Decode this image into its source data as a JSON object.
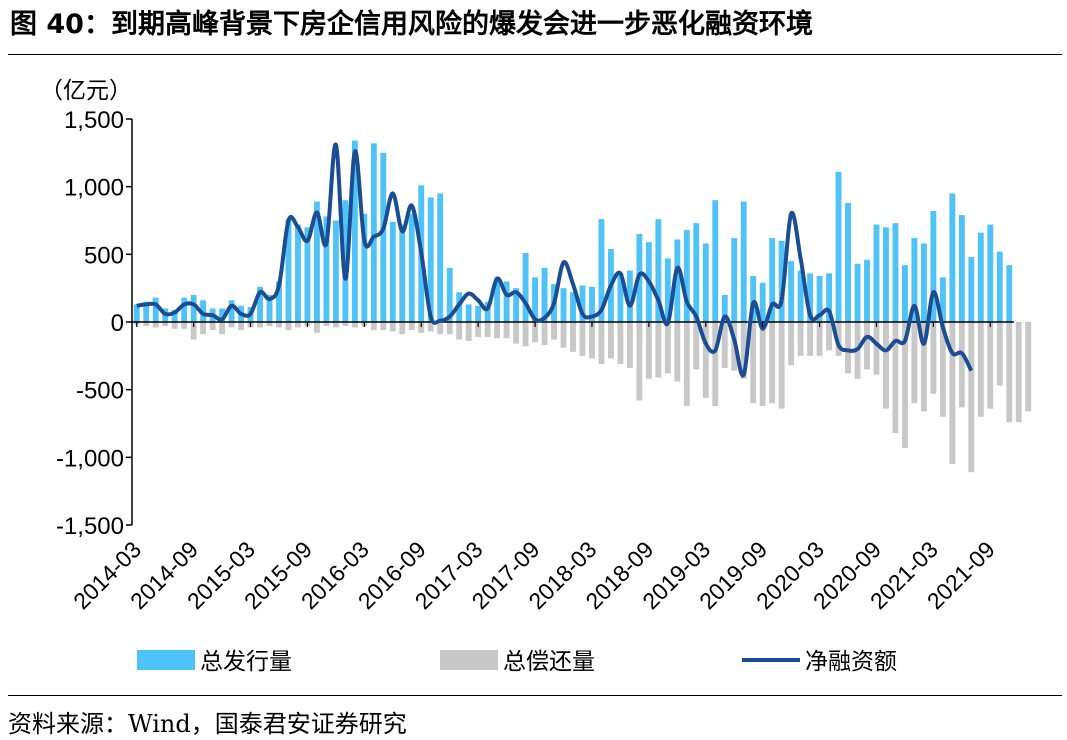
{
  "figure": {
    "title": "图 40：到期高峰背景下房企信用风险的爆发会进一步恶化融资环境",
    "source": "资料来源：Wind，国泰君安证券研究"
  },
  "chart_data": {
    "type": "bar+line",
    "unit_label": "（亿元）",
    "ylim": [
      -1500,
      1500
    ],
    "yticks": [
      1500,
      1000,
      500,
      0,
      -500,
      -1000,
      -1500
    ],
    "ytick_labels": [
      "1,500",
      "1,000",
      "500",
      "0",
      "-500",
      "-1,000",
      "-1,500"
    ],
    "xtick_labels": [
      "2014-03",
      "2014-09",
      "2015-03",
      "2015-09",
      "2016-03",
      "2016-09",
      "2017-03",
      "2017-09",
      "2018-03",
      "2018-09",
      "2019-03",
      "2019-09",
      "2020-03",
      "2020-09",
      "2021-03",
      "2021-09"
    ],
    "start_month": "2014-03",
    "series": [
      {
        "name": "总发行量",
        "type": "bar",
        "color": "#4FC3F7",
        "values": [
          130,
          150,
          180,
          100,
          90,
          180,
          200,
          160,
          100,
          100,
          160,
          120,
          110,
          260,
          200,
          300,
          760,
          720,
          700,
          890,
          780,
          750,
          900,
          1340,
          800,
          1320,
          1250,
          740,
          720,
          800,
          1010,
          920,
          950,
          400,
          220,
          130,
          120,
          150,
          330,
          300,
          250,
          510,
          330,
          400,
          280,
          250,
          220,
          270,
          260,
          760,
          540,
          360,
          380,
          650,
          590,
          760,
          470,
          610,
          680,
          730,
          580,
          900,
          200,
          620,
          890,
          340,
          290,
          620,
          600,
          450,
          380,
          360,
          340,
          360,
          1110,
          880,
          430,
          460,
          720,
          700,
          730,
          420,
          620,
          580,
          820,
          330,
          950,
          790,
          480,
          660,
          720,
          520,
          420
        ]
      },
      {
        "name": "总偿还量",
        "type": "bar",
        "color": "#C8C8C8",
        "values": [
          -20,
          -30,
          -40,
          -30,
          -50,
          -50,
          -130,
          -90,
          -60,
          -90,
          -40,
          -60,
          -40,
          -40,
          -30,
          -40,
          -60,
          -40,
          -30,
          -80,
          -30,
          -40,
          -30,
          -40,
          -30,
          -60,
          -60,
          -70,
          -90,
          -60,
          -80,
          -70,
          -90,
          -90,
          -130,
          -140,
          -110,
          -110,
          -120,
          -120,
          -160,
          -180,
          -150,
          -170,
          -130,
          -190,
          -220,
          -250,
          -270,
          -310,
          -270,
          -310,
          -340,
          -580,
          -420,
          -410,
          -380,
          -440,
          -620,
          -350,
          -560,
          -620,
          -340,
          -360,
          -420,
          -600,
          -620,
          -600,
          -640,
          -320,
          -250,
          -250,
          -250,
          -210,
          -250,
          -380,
          -420,
          -350,
          -390,
          -640,
          -820,
          -930,
          -600,
          -660,
          -530,
          -700,
          -1050,
          -630,
          -1110,
          -700,
          -640,
          -470,
          -740,
          -740,
          -660
        ]
      },
      {
        "name": "净融资额",
        "type": "line",
        "color": "#1A4D94",
        "values": [
          120,
          130,
          130,
          60,
          70,
          130,
          130,
          60,
          50,
          20,
          120,
          60,
          60,
          220,
          170,
          270,
          750,
          700,
          600,
          810,
          580,
          1310,
          320,
          1260,
          600,
          630,
          690,
          950,
          670,
          860,
          510,
          40,
          10,
          40,
          130,
          210,
          160,
          100,
          320,
          200,
          220,
          140,
          20,
          30,
          140,
          440,
          280,
          60,
          40,
          90,
          270,
          360,
          120,
          350,
          300,
          160,
          -10,
          400,
          150,
          40,
          -160,
          -210,
          40,
          -130,
          -390,
          140,
          -50,
          130,
          160,
          800,
          470,
          50,
          50,
          80,
          -170,
          -210,
          -200,
          -110,
          -160,
          -210,
          -140,
          -140,
          120,
          -160,
          220,
          -40,
          -230,
          -230,
          -360
        ]
      }
    ],
    "legend": [
      {
        "label": "总发行量",
        "color": "#4FC3F7",
        "shape": "bar"
      },
      {
        "label": "总偿还量",
        "color": "#C8C8C8",
        "shape": "bar"
      },
      {
        "label": "净融资额",
        "color": "#1A4D94",
        "shape": "line"
      }
    ]
  }
}
